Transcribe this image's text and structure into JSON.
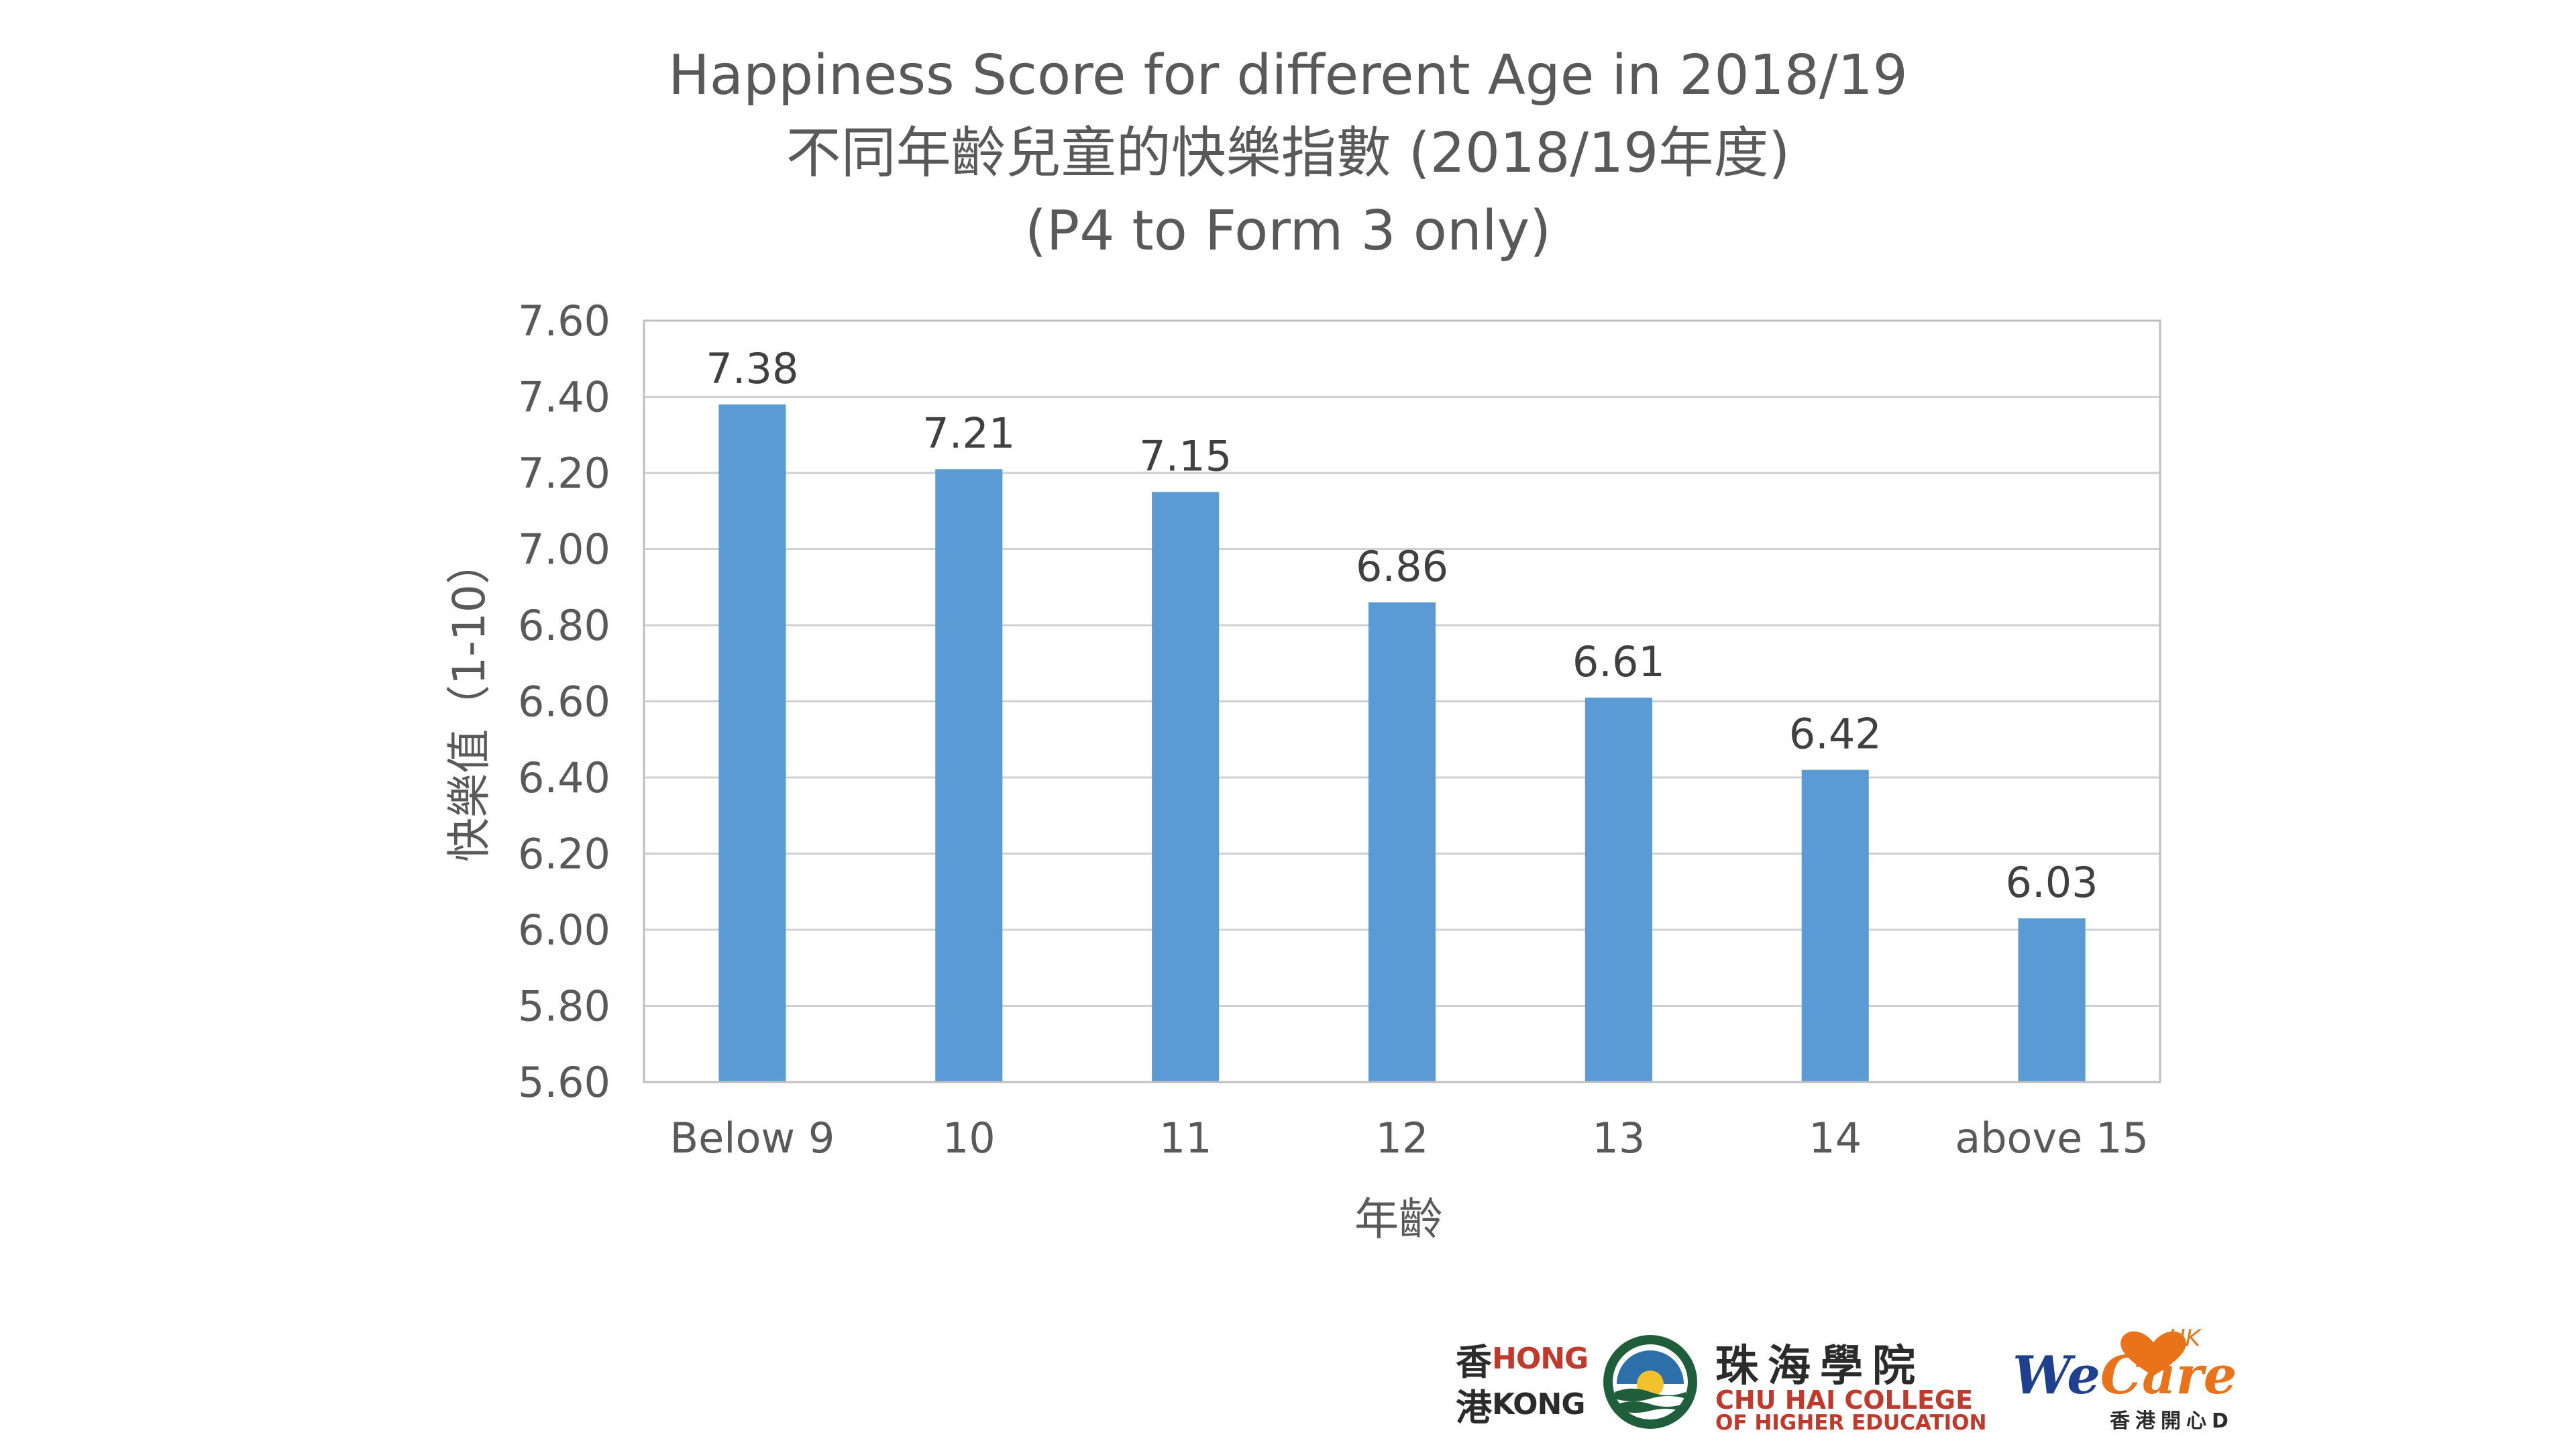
{
  "chart_data": {
    "type": "bar",
    "title": "Happiness Score for different Age in 2018/19",
    "title_zh": "不同年齡兒童的快樂指數 (2018/19年度)",
    "subtitle": "(P4 to Form 3 only)",
    "xlabel": "年齡",
    "ylabel": "快樂值（1-10）",
    "categories": [
      "Below 9",
      "10",
      "11",
      "12",
      "13",
      "14",
      "above 15"
    ],
    "values": [
      7.38,
      7.21,
      7.15,
      6.86,
      6.61,
      6.42,
      6.03
    ],
    "value_labels": [
      "7.38",
      "7.21",
      "7.15",
      "6.86",
      "6.61",
      "6.42",
      "6.03"
    ],
    "ylim": [
      5.6,
      7.6
    ],
    "y_ticks": [
      "5.60",
      "5.80",
      "6.00",
      "6.20",
      "6.40",
      "6.60",
      "6.80",
      "7.00",
      "7.20",
      "7.40",
      "7.60"
    ],
    "grid": true,
    "legend": "none",
    "bar_color": "#5b9bd5"
  },
  "logos": {
    "hong_kong_zh_1": "香",
    "hong_kong_zh_2": "港",
    "hong_kong_en_1": "HONG",
    "hong_kong_en_2": "KONG",
    "chu_hai_zh": "珠海學院",
    "chu_hai_en_1": "CHU HAI COLLEGE",
    "chu_hai_en_2": "OF HIGHER EDUCATION",
    "wecare_we": "We",
    "wecare_care": "Care",
    "wecare_hk": "HK",
    "wecare_zh": "香港開心D"
  }
}
